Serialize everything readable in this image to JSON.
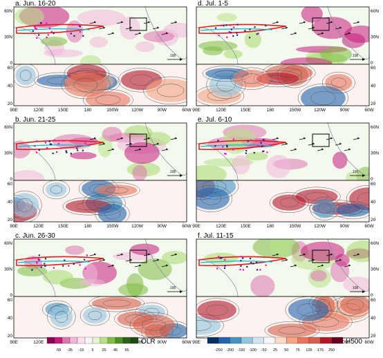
{
  "panels": [
    {
      "id": "a",
      "title": "a. Jun. 16-20",
      "ref_vector": "100"
    },
    {
      "id": "b",
      "title": "b. Jun. 21-25",
      "ref_vector": "100"
    },
    {
      "id": "c",
      "title": "c. Jun. 26-30",
      "ref_vector": "100"
    },
    {
      "id": "d",
      "title": "d. Jul. 1-5",
      "ref_vector": "100"
    },
    {
      "id": "e",
      "title": "e. Jul. 6-10",
      "ref_vector": "100"
    },
    {
      "id": "f",
      "title": "f. Jul. 11-15",
      "ref_vector": "100"
    }
  ],
  "axes": {
    "lon_ticks": [
      "90E",
      "120E",
      "150E",
      "180",
      "150W",
      "120W",
      "90W",
      "60W"
    ],
    "top_lat_ticks": [
      "60N",
      "30N",
      "0"
    ],
    "bottom_lat_ticks": [
      "60",
      "40",
      "20"
    ]
  },
  "colorbars": {
    "olr": {
      "label": "OLR",
      "ticks": [
        "-55",
        "-35",
        "-15",
        "5",
        "25",
        "45",
        "65"
      ],
      "colors": [
        "#8e0152",
        "#c51b7d",
        "#de77ae",
        "#f1b6da",
        "#fde0ef",
        "#f7f7f7",
        "#e6f5d0",
        "#b8e186",
        "#7fbc41",
        "#4d9221",
        "#276419",
        "#1a4a10"
      ]
    },
    "h500": {
      "label": "H500",
      "ticks": [
        "-250",
        "-200",
        "-150",
        "-100",
        "-50",
        "25",
        "50",
        "75",
        "125",
        "175",
        "250"
      ],
      "colors": [
        "#053061",
        "#2166ac",
        "#4393c3",
        "#92c5de",
        "#d1e5f0",
        "#f7f7f7",
        "#fddbc7",
        "#f4a582",
        "#e7745d",
        "#d6604d",
        "#b2182b",
        "#67001f"
      ]
    }
  }
}
